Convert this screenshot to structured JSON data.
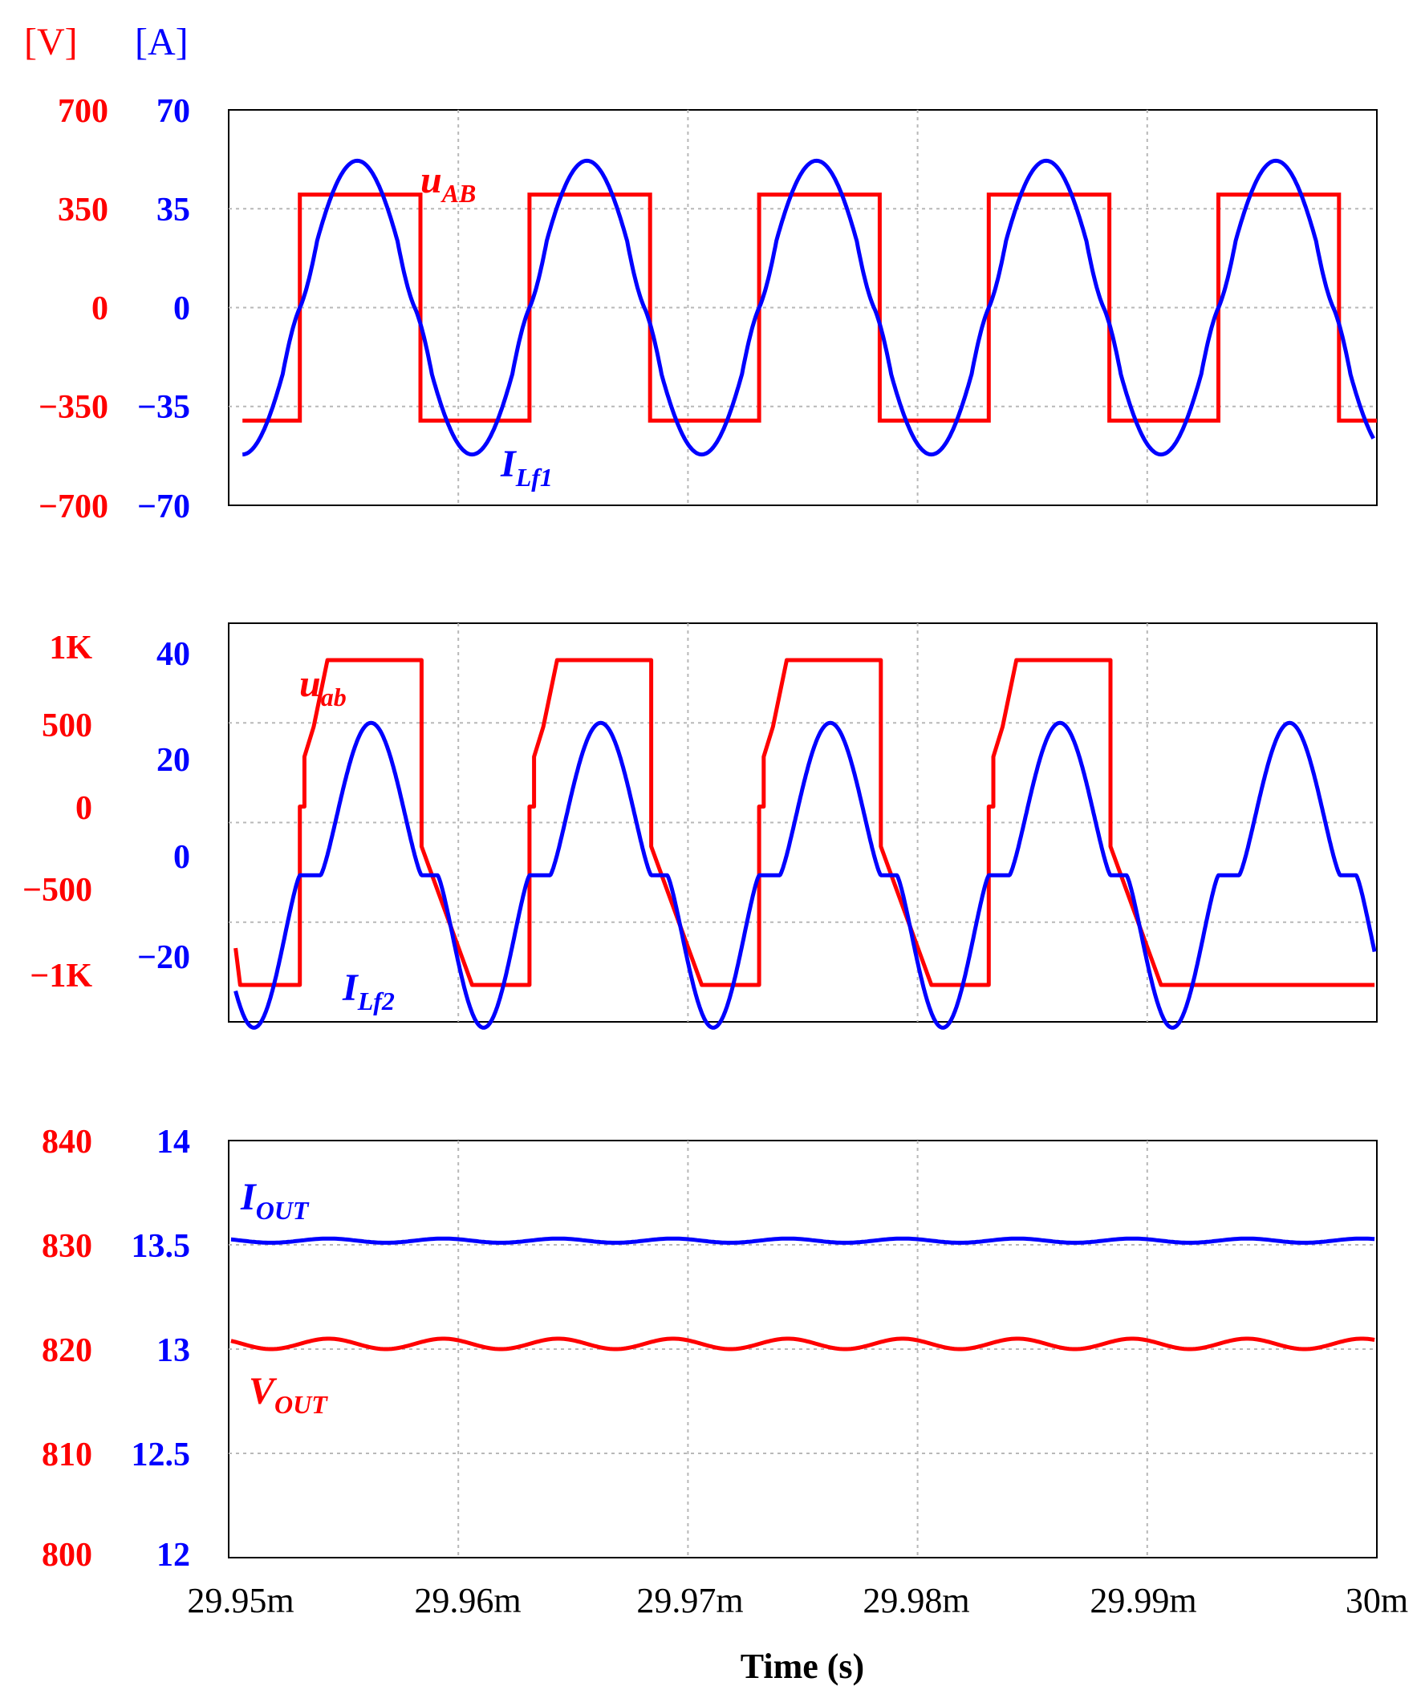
{
  "colors": {
    "voltage": "#ff0000",
    "current": "#0000ff",
    "frame": "#000000",
    "grid": "#b8b8b8"
  },
  "units": {
    "voltage": "[V]",
    "current": "[A]"
  },
  "chart_data": [
    {
      "type": "line",
      "panel": "top",
      "x_unit": "s",
      "xlim": [
        0.02995,
        0.03
      ],
      "y_left": {
        "label": "[V]",
        "ylim": [
          -700,
          700
        ],
        "ticks": [
          "700",
          "350",
          "0",
          "−350",
          "−700"
        ]
      },
      "y_right": {
        "label": "[A]",
        "ylim": [
          -70,
          70
        ],
        "ticks": [
          "70",
          "35",
          "0",
          "−35",
          "−70"
        ]
      },
      "grid": true,
      "series": [
        {
          "name": "u_AB",
          "axis": "voltage",
          "shape": "square",
          "high": 400,
          "low": -400,
          "edges_ms": [
            29.9506,
            29.9531,
            29.95835,
            29.9631,
            29.96835,
            29.9731,
            29.97835,
            29.9831,
            29.98835,
            29.9931,
            29.99835,
            30.0
          ]
        },
        {
          "name": "I_Lf1",
          "axis": "current",
          "shape": "sine",
          "peak": 52,
          "period_ms": 0.01,
          "x": [
            29.9506,
            29.9531,
            29.9555,
            29.95835,
            29.9603,
            29.9631
          ],
          "y": [
            -43,
            0,
            52,
            0,
            -52,
            0
          ]
        }
      ],
      "annotations": [
        {
          "base": "u",
          "sub": "AB",
          "series": "u_AB"
        },
        {
          "base": "I",
          "sub": "Lf1",
          "series": "I_Lf1"
        }
      ]
    },
    {
      "type": "line",
      "panel": "middle",
      "x_unit": "s",
      "xlim": [
        0.02995,
        0.03
      ],
      "y_left": {
        "ylim": [
          -1000,
          1000
        ],
        "ticks": [
          "1K",
          "500",
          "0",
          "−500",
          "−1K"
        ]
      },
      "y_right": {
        "ylim": [
          -25,
          43
        ],
        "ticks": [
          "40",
          "20",
          "0",
          "−20"
        ]
      },
      "grid": true,
      "series": [
        {
          "name": "u_ab",
          "axis": "voltage",
          "shape": "trapezoid",
          "high": 815,
          "low": -815,
          "x": [
            29.9531,
            29.9537,
            29.9561,
            29.9584,
            29.9606
          ],
          "y": [
            -815,
            330,
            815,
            815,
            -815
          ]
        },
        {
          "name": "I_Lf2",
          "axis": "current",
          "shape": "pulse",
          "peak": 26,
          "x": [
            29.9531,
            29.9556,
            29.9584,
            29.9603,
            29.9631
          ],
          "y": [
            0,
            26,
            0,
            -26,
            0
          ]
        }
      ],
      "annotations": [
        {
          "base": "u",
          "sub": "ab",
          "series": "u_ab"
        },
        {
          "base": "I",
          "sub": "Lf2",
          "series": "I_Lf2"
        }
      ]
    },
    {
      "type": "line",
      "panel": "bottom",
      "x_unit": "s",
      "xlim": [
        0.02995,
        0.03
      ],
      "y_left": {
        "ylim": [
          800,
          840
        ],
        "ticks": [
          "840",
          "830",
          "820",
          "810",
          "800"
        ]
      },
      "y_right": {
        "ylim": [
          12,
          14
        ],
        "ticks": [
          "14",
          "13.5",
          "13",
          "12.5",
          "12"
        ]
      },
      "grid": true,
      "series": [
        {
          "name": "I_OUT",
          "axis": "current",
          "mean": 13.52,
          "ripple": 0.01
        },
        {
          "name": "V_OUT",
          "axis": "voltage",
          "mean": 820.5,
          "ripple": 0.5
        }
      ],
      "annotations": [
        {
          "base": "I",
          "sub": "OUT",
          "series": "I_OUT"
        },
        {
          "base": "V",
          "sub": "OUT",
          "series": "V_OUT"
        }
      ],
      "x_ticks": [
        "29.95m",
        "29.96m",
        "29.97m",
        "29.98m",
        "29.99m",
        "30m"
      ],
      "xlabel": "Time (s)"
    }
  ]
}
